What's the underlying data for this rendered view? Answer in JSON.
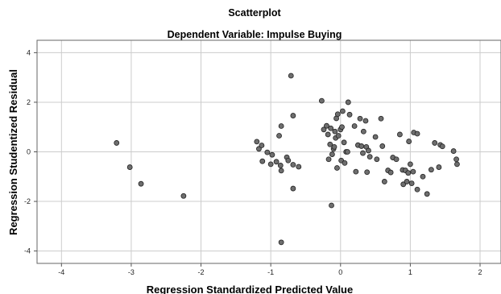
{
  "chart_data": {
    "type": "scatter",
    "title": "Scatterplot",
    "subtitle": "Dependent Variable: Impulse Buying",
    "xlabel": "Regression Standardized Predicted Value",
    "ylabel": "Regression Studentized Residual",
    "xlim": [
      -4.35,
      2.3
    ],
    "ylim": [
      -4.5,
      4.5
    ],
    "xticks": [
      -4,
      -3,
      -2,
      -1,
      0,
      1,
      2
    ],
    "yticks": [
      -4,
      -2,
      0,
      2,
      4
    ],
    "grid": true,
    "colors": {
      "point_fill": "#6e6e6e",
      "point_stroke": "#222222",
      "grid": "#cccccc",
      "axis": "#555555"
    },
    "points": [
      [
        -3.21,
        0.36
      ],
      [
        -3.02,
        -0.62
      ],
      [
        -2.86,
        -1.29
      ],
      [
        -2.25,
        -1.78
      ],
      [
        -1.2,
        0.41
      ],
      [
        -1.17,
        0.12
      ],
      [
        -1.13,
        0.26
      ],
      [
        -1.12,
        -0.38
      ],
      [
        -1.05,
        -0.02
      ],
      [
        -1.0,
        -0.5
      ],
      [
        -0.98,
        -0.12
      ],
      [
        -0.92,
        -0.4
      ],
      [
        -0.88,
        0.65
      ],
      [
        -0.85,
        1.04
      ],
      [
        -0.86,
        -0.55
      ],
      [
        -0.85,
        -0.76
      ],
      [
        -0.85,
        -3.65
      ],
      [
        -0.77,
        -0.22
      ],
      [
        -0.75,
        -0.35
      ],
      [
        -0.71,
        3.07
      ],
      [
        -0.68,
        1.46
      ],
      [
        -0.68,
        -0.52
      ],
      [
        -0.68,
        -1.48
      ],
      [
        -0.6,
        -0.6
      ],
      [
        -0.27,
        2.06
      ],
      [
        -0.24,
        0.9
      ],
      [
        -0.2,
        1.05
      ],
      [
        -0.18,
        0.7
      ],
      [
        -0.17,
        -0.3
      ],
      [
        -0.15,
        0.3
      ],
      [
        -0.14,
        0.95
      ],
      [
        -0.13,
        -2.16
      ],
      [
        -0.12,
        -0.1
      ],
      [
        -0.1,
        0.12
      ],
      [
        -0.09,
        0.2
      ],
      [
        -0.08,
        0.82
      ],
      [
        -0.07,
        0.56
      ],
      [
        -0.06,
        1.35
      ],
      [
        -0.05,
        -0.65
      ],
      [
        -0.04,
        1.52
      ],
      [
        -0.03,
        0.65
      ],
      [
        0.0,
        0.9
      ],
      [
        0.01,
        -0.35
      ],
      [
        0.02,
        1.0
      ],
      [
        0.03,
        1.64
      ],
      [
        0.05,
        0.38
      ],
      [
        0.06,
        -0.45
      ],
      [
        0.08,
        0.0
      ],
      [
        0.1,
        0.0
      ],
      [
        0.11,
        2.0
      ],
      [
        0.13,
        1.5
      ],
      [
        0.2,
        1.04
      ],
      [
        0.22,
        -0.8
      ],
      [
        0.25,
        0.27
      ],
      [
        0.28,
        1.34
      ],
      [
        0.3,
        0.23
      ],
      [
        0.32,
        -0.05
      ],
      [
        0.33,
        0.82
      ],
      [
        0.36,
        1.25
      ],
      [
        0.37,
        0.2
      ],
      [
        0.38,
        -0.82
      ],
      [
        0.4,
        0.05
      ],
      [
        0.42,
        -0.2
      ],
      [
        0.5,
        0.6
      ],
      [
        0.52,
        -0.3
      ],
      [
        0.58,
        1.34
      ],
      [
        0.6,
        0.23
      ],
      [
        0.63,
        -1.2
      ],
      [
        0.68,
        -0.75
      ],
      [
        0.72,
        -0.83
      ],
      [
        0.75,
        -0.23
      ],
      [
        0.8,
        -0.3
      ],
      [
        0.85,
        0.7
      ],
      [
        0.89,
        -0.73
      ],
      [
        0.9,
        -1.31
      ],
      [
        0.93,
        -0.75
      ],
      [
        0.95,
        -1.2
      ],
      [
        0.97,
        -0.85
      ],
      [
        0.98,
        0.42
      ],
      [
        1.0,
        -0.5
      ],
      [
        1.02,
        -1.27
      ],
      [
        1.04,
        -0.8
      ],
      [
        1.05,
        0.78
      ],
      [
        1.1,
        0.73
      ],
      [
        1.1,
        -1.52
      ],
      [
        1.18,
        -1.0
      ],
      [
        1.24,
        -1.7
      ],
      [
        1.3,
        -0.72
      ],
      [
        1.35,
        0.36
      ],
      [
        1.41,
        -0.62
      ],
      [
        1.43,
        0.28
      ],
      [
        1.46,
        0.22
      ],
      [
        1.62,
        0.03
      ],
      [
        1.66,
        -0.3
      ],
      [
        1.67,
        -0.5
      ]
    ]
  }
}
